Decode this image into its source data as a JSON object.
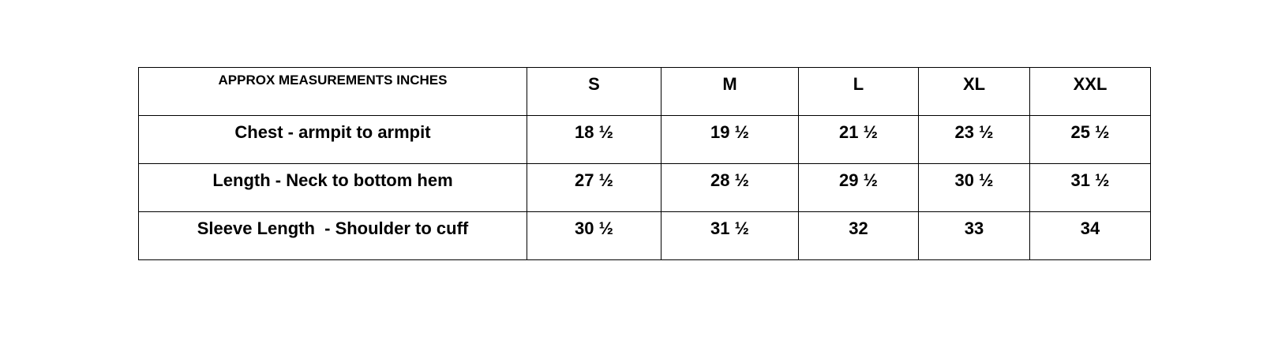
{
  "table": {
    "header_label": "APPROX MEASUREMENTS INCHES",
    "sizes": [
      "S",
      "M",
      "L",
      "XL",
      "XXL"
    ],
    "rows": [
      {
        "label": "Chest - armpit to armpit",
        "values": [
          "18 ½",
          "19 ½",
          "21 ½",
          "23 ½",
          "25 ½"
        ]
      },
      {
        "label": "Length - Neck to bottom hem",
        "values": [
          "27 ½",
          "28 ½",
          "29 ½",
          "30 ½",
          "31 ½"
        ]
      },
      {
        "label": "Sleeve Length  - Shoulder to cuff",
        "values": [
          "30 ½",
          "31 ½",
          "32",
          "33",
          "34"
        ]
      }
    ]
  }
}
